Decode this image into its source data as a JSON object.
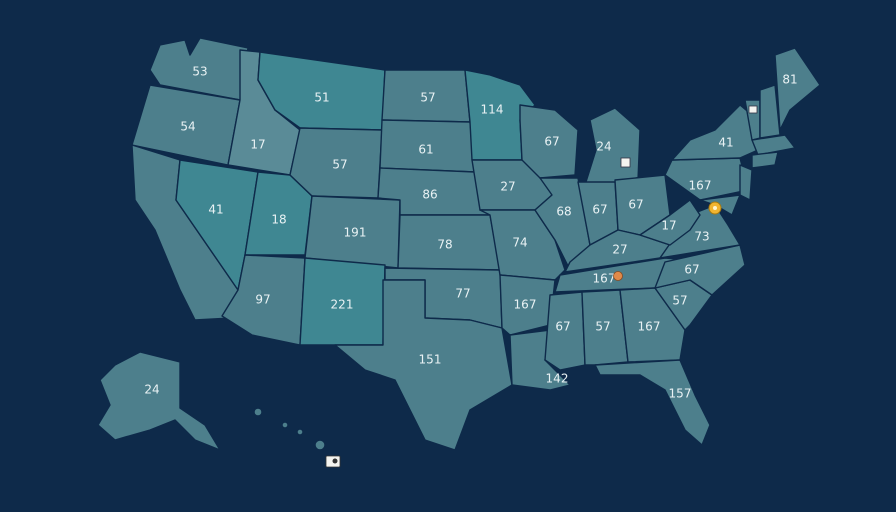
{
  "map": {
    "background": "#0e2a4a",
    "state_fill": "#4d7f8c",
    "highlight_fill": "#3f8792",
    "labels": {
      "wa": "53",
      "or": "54",
      "ca": "",
      "ca_n": "17",
      "nv": "41",
      "id": "17",
      "mt": "51",
      "wy": "57",
      "ut": "18",
      "co": "191",
      "az": "97",
      "nm": "221",
      "nd": "57",
      "sd": "61",
      "ne": "86",
      "ks": "78",
      "ok": "77",
      "tx": "151",
      "mn": "114",
      "ia": "27",
      "mo": "74",
      "ar": "167",
      "la": "142",
      "wi": "67",
      "il": "68",
      "mi": "24",
      "in": "67",
      "oh": "67",
      "ky": "27",
      "tn": "167",
      "ms": "67",
      "al": "57",
      "ga": "167",
      "fl": "157",
      "sc": "57",
      "nc": "67",
      "va": "73",
      "wv": "17",
      "pa": "167",
      "ny": "41",
      "me": "81",
      "ak": "24"
    },
    "markers": [
      {
        "name": "white-square-marker",
        "color": "#f4f4f0"
      },
      {
        "name": "white-square-marker-ne",
        "color": "#f4f4f0"
      },
      {
        "name": "yellow-pin-marker",
        "color": "#f2b531"
      },
      {
        "name": "orange-pin-marker",
        "color": "#e08a4a"
      },
      {
        "name": "hawaii-marker",
        "color": "#f4f4f0"
      }
    ]
  }
}
